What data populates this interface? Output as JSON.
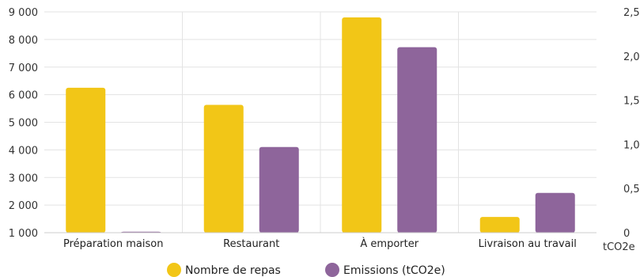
{
  "chart_data": {
    "type": "bar",
    "categories": [
      "Préparation maison",
      "Restaurant",
      "À emporter",
      "Livraison au travail"
    ],
    "series": [
      {
        "name": "Nombre de repas",
        "axis": "left",
        "color": "#F2C617",
        "values": [
          6250,
          5630,
          8800,
          1570
        ]
      },
      {
        "name": "Emissions (tCO2e)",
        "axis": "right",
        "color": "#8E659B",
        "values": [
          0.005,
          0.97,
          2.1,
          0.45
        ]
      }
    ],
    "y_left": {
      "min": 1000,
      "max": 9000,
      "ticks": [
        1000,
        2000,
        3000,
        4000,
        5000,
        6000,
        7000,
        8000,
        9000
      ],
      "tick_labels": [
        "1 000",
        "2 000",
        "3 000",
        "4 000",
        "5 000",
        "6 000",
        "7 000",
        "8 000",
        "9 000"
      ]
    },
    "y_right": {
      "min": 0,
      "max": 2.5,
      "ticks": [
        0,
        0.5,
        1.0,
        1.5,
        2.0,
        2.5
      ],
      "tick_labels": [
        "0",
        "0,5",
        "1,0",
        "1,5",
        "2,0",
        "2,5"
      ],
      "unit_label": "tCO2e"
    },
    "grid": true,
    "legend_position": "bottom-center"
  }
}
